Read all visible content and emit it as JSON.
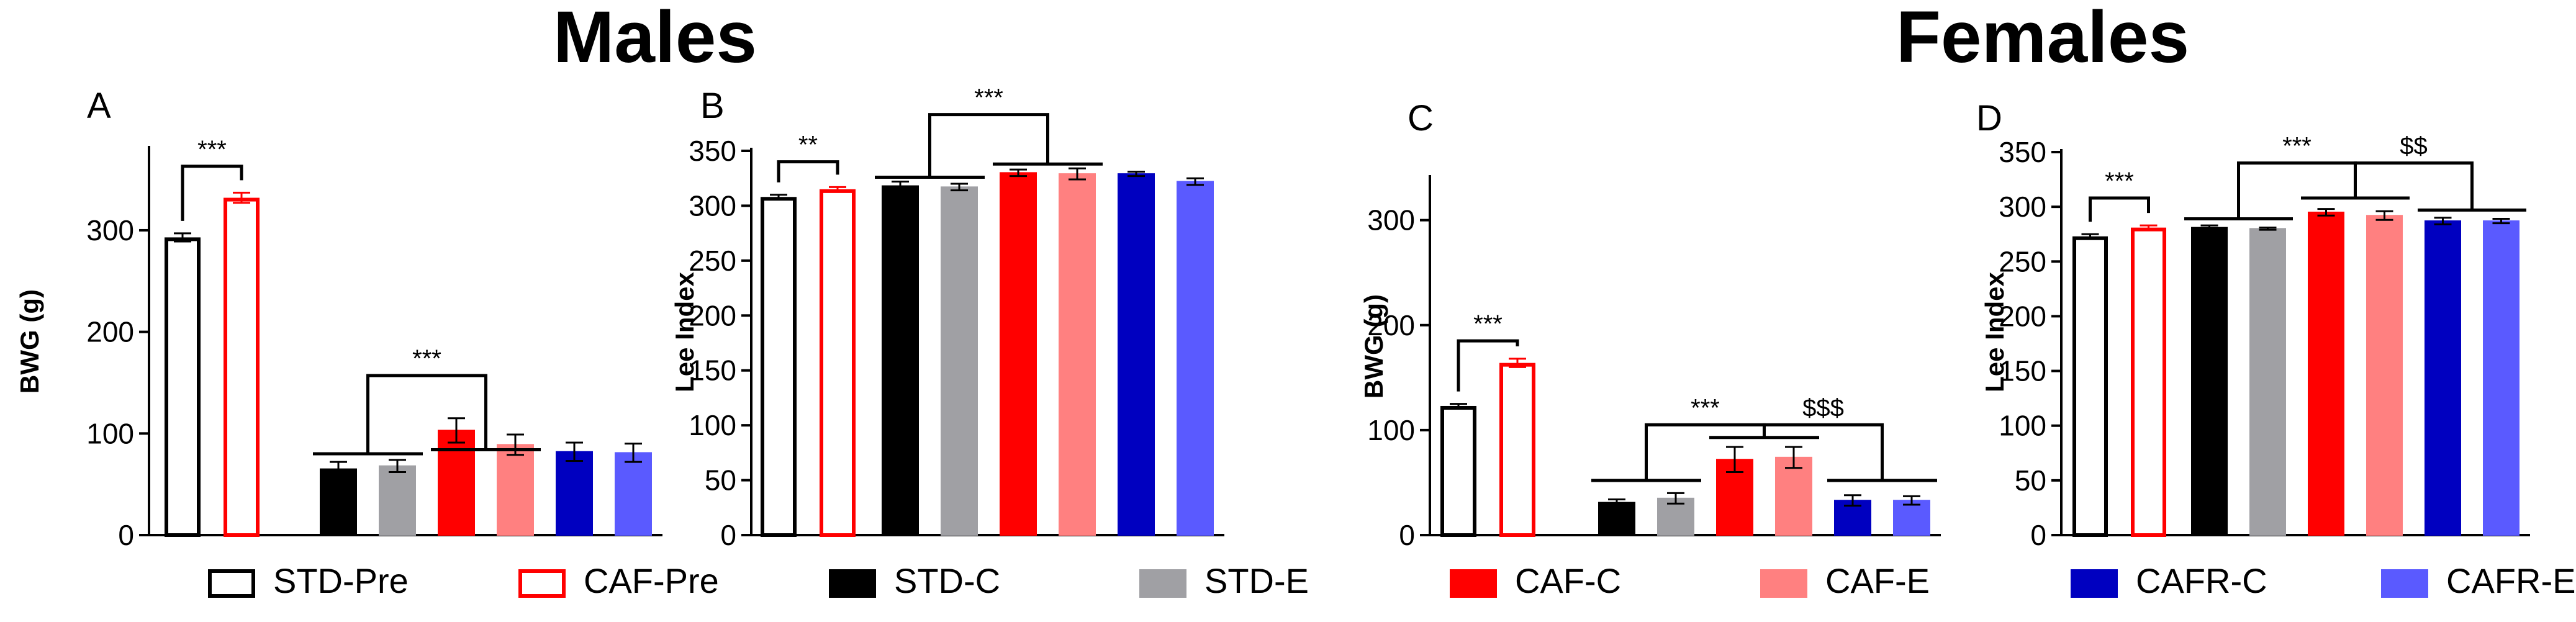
{
  "titles": {
    "males": "Males",
    "females": "Females"
  },
  "colors": {
    "STD-Pre": "#ffffff",
    "CAF-Pre": "#ffffff",
    "STD-C": "#000000",
    "STD-E": "#a0a0a4",
    "CAF-C": "#ff0000",
    "CAF-E": "#ff8080",
    "CAFR-C": "#0000c0",
    "CAFR-E": "#5a5aff",
    "stroke_STD-Pre": "#000000",
    "stroke_CAF-Pre": "#ff0000"
  },
  "legend": [
    {
      "label": "STD-Pre",
      "key": "STD-Pre"
    },
    {
      "label": "CAF-Pre",
      "key": "CAF-Pre"
    },
    {
      "label": "STD-C",
      "key": "STD-C"
    },
    {
      "label": "STD-E",
      "key": "STD-E"
    },
    {
      "label": "CAF-C",
      "key": "CAF-C"
    },
    {
      "label": "CAF-E",
      "key": "CAF-E"
    },
    {
      "label": "CAFR-C",
      "key": "CAFR-C"
    },
    {
      "label": "CAFR-E",
      "key": "CAFR-E"
    }
  ],
  "chart_data": [
    {
      "panel": "A",
      "type": "bar",
      "sex": "Males",
      "ylabel": "BWG (g)",
      "ylim": [
        0,
        380
      ],
      "yticks": [
        0,
        100,
        200,
        300
      ],
      "ytick_labels": [
        "0",
        "100",
        "200",
        "300"
      ],
      "categories": [
        "STD-Pre",
        "CAF-Pre",
        "STD-C",
        "STD-E",
        "CAF-C",
        "CAF-E",
        "CAFR-C",
        "CAFR-E"
      ],
      "values": [
        293,
        332,
        65,
        68,
        103,
        89,
        82,
        81
      ],
      "errors": [
        4,
        5,
        7,
        6,
        12,
        10,
        9,
        9
      ],
      "annotations": [
        {
          "text": "***",
          "type": "pair",
          "a": 0,
          "b": 1,
          "y": 363
        },
        {
          "text": "***",
          "type": "groups",
          "l1": 80,
          "r1": 84,
          "lv": 157
        }
      ]
    },
    {
      "panel": "B",
      "type": "bar",
      "sex": "Males",
      "ylabel": "Lee Index",
      "ylim": [
        0,
        350
      ],
      "yticks": [
        0,
        50,
        100,
        150,
        200,
        250,
        300,
        350
      ],
      "ytick_labels": [
        "0",
        "50",
        "100",
        "150",
        "200",
        "250",
        "300",
        "350"
      ],
      "categories": [
        "STD-Pre",
        "CAF-Pre",
        "STD-C",
        "STD-E",
        "CAF-C",
        "CAF-E",
        "CAFR-C",
        "CAFR-E"
      ],
      "values": [
        308,
        315,
        318,
        317,
        330,
        329,
        329,
        322
      ],
      "errors": [
        2,
        2,
        4,
        3,
        3,
        5,
        2,
        3
      ],
      "annotations": [
        {
          "text": "**",
          "type": "pair",
          "a": 0,
          "b": 1,
          "y": 340
        },
        {
          "text": "***",
          "type": "groups",
          "l1": 326,
          "r1": 338,
          "lv": 383
        }
      ]
    },
    {
      "panel": "C",
      "type": "bar",
      "sex": "Females",
      "ylabel": "BWG (g)",
      "ylim": [
        0,
        340
      ],
      "yticks": [
        0,
        100,
        200,
        300
      ],
      "ytick_labels": [
        "0",
        "100",
        "200",
        "300"
      ],
      "categories": [
        "STD-Pre",
        "CAF-Pre",
        "STD-C",
        "STD-E",
        "CAF-C",
        "CAF-E",
        "CAFR-C",
        "CAFR-E"
      ],
      "values": [
        123,
        164,
        31,
        35,
        72,
        74,
        33,
        33
      ],
      "errors": [
        2,
        4,
        3,
        5,
        12,
        10,
        5,
        4
      ],
      "annotations": [
        {
          "text": "***",
          "type": "pair",
          "a": 0,
          "b": 1,
          "y": 185
        },
        {
          "text": "***",
          "type": "groups3",
          "l1": 52,
          "r1": 93,
          "lv": 105
        },
        {
          "text": "$$$",
          "type": "groups3b",
          "l1": 93,
          "r1": 52,
          "lv": 105
        }
      ]
    },
    {
      "panel": "D",
      "type": "bar",
      "sex": "Females",
      "ylabel": "Lee Index",
      "ylim": [
        0,
        350
      ],
      "yticks": [
        0,
        50,
        100,
        150,
        200,
        250,
        300,
        350
      ],
      "ytick_labels": [
        "0",
        "50",
        "100",
        "150",
        "200",
        "250",
        "300",
        "350"
      ],
      "categories": [
        "STD-Pre",
        "CAF-Pre",
        "STD-C",
        "STD-E",
        "CAF-C",
        "CAF-E",
        "CAFR-C",
        "CAFR-E"
      ],
      "values": [
        273,
        281,
        281,
        280,
        295,
        292,
        287,
        287
      ],
      "errors": [
        2,
        2,
        2,
        1,
        3,
        4,
        3,
        2
      ],
      "annotations": [
        {
          "text": "***",
          "type": "pair",
          "a": 0,
          "b": 1,
          "y": 308
        },
        {
          "text": "***",
          "type": "groups3",
          "l1": 289,
          "r1": 308,
          "lv": 340
        },
        {
          "text": "$$",
          "type": "groups3b",
          "l1": 308,
          "r1": 297,
          "lv": 340
        }
      ]
    }
  ]
}
